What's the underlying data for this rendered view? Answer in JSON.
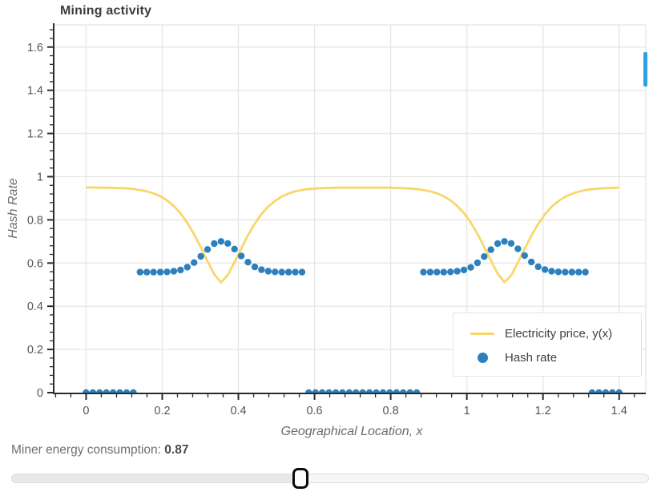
{
  "chart_data": {
    "type": "line+scatter",
    "title": "Mining activity",
    "xlabel": "Geographical Location, x",
    "ylabel": "Hash Rate",
    "xlim": [
      -0.083,
      1.47
    ],
    "ylim": [
      0,
      1.703
    ],
    "x_ticks": {
      "values": [
        0,
        0.2,
        0.4,
        0.6,
        0.8,
        1,
        1.2,
        1.4
      ],
      "labels": [
        "0",
        "0.2",
        "0.4",
        "0.6",
        "0.8",
        "1",
        "1.2",
        "1.4"
      ]
    },
    "y_ticks": {
      "values": [
        0,
        0.2,
        0.4,
        0.6,
        0.8,
        1,
        1.2,
        1.4,
        1.6
      ],
      "labels": [
        "0",
        "0.2",
        "0.4",
        "0.6",
        "0.8",
        "1",
        "1.2",
        "1.4",
        "1.6"
      ]
    },
    "minor_tick_step": 0.04,
    "grid": true,
    "legend_position": "bottom-right",
    "colors": {
      "grid": "#e7e7e7",
      "axis": "#2b2b2b",
      "tick_text": "#555555"
    },
    "x": [
      0,
      0.0177,
      0.0354,
      0.0532,
      0.0709,
      0.0886,
      0.1063,
      0.1241,
      0.1418,
      0.1595,
      0.1772,
      0.1949,
      0.2127,
      0.2304,
      0.2481,
      0.2658,
      0.2835,
      0.3013,
      0.319,
      0.3367,
      0.3544,
      0.3722,
      0.3899,
      0.4076,
      0.4253,
      0.443,
      0.4608,
      0.4785,
      0.4962,
      0.5139,
      0.5316,
      0.5494,
      0.5671,
      0.5848,
      0.6025,
      0.6203,
      0.638,
      0.6557,
      0.6734,
      0.6911,
      0.7089,
      0.7266,
      0.7443,
      0.762,
      0.7797,
      0.7975,
      0.8152,
      0.8329,
      0.8506,
      0.8684,
      0.8861,
      0.9038,
      0.9215,
      0.9392,
      0.957,
      0.9747,
      0.9924,
      1.0101,
      1.0278,
      1.0456,
      1.0633,
      1.081,
      1.0987,
      1.1165,
      1.1342,
      1.1519,
      1.1696,
      1.1873,
      1.2051,
      1.2228,
      1.2405,
      1.2582,
      1.2759,
      1.2937,
      1.3114,
      1.3291,
      1.3468,
      1.3646,
      1.3823,
      1.4
    ],
    "series": [
      {
        "name": "Electricity price, y(x)",
        "type": "line",
        "color": "#FAD66A",
        "line_width": 2.8,
        "values": [
          0.95,
          0.95,
          0.949,
          0.949,
          0.948,
          0.947,
          0.946,
          0.943,
          0.938,
          0.932,
          0.923,
          0.909,
          0.89,
          0.864,
          0.83,
          0.786,
          0.733,
          0.673,
          0.608,
          0.548,
          0.51,
          0.545,
          0.604,
          0.668,
          0.729,
          0.783,
          0.827,
          0.862,
          0.888,
          0.908,
          0.922,
          0.932,
          0.938,
          0.943,
          0.945,
          0.947,
          0.948,
          0.949,
          0.949,
          0.949,
          0.949,
          0.949,
          0.949,
          0.949,
          0.949,
          0.949,
          0.948,
          0.947,
          0.945,
          0.943,
          0.938,
          0.932,
          0.923,
          0.909,
          0.891,
          0.865,
          0.831,
          0.788,
          0.735,
          0.675,
          0.611,
          0.551,
          0.511,
          0.543,
          0.602,
          0.666,
          0.727,
          0.781,
          0.825,
          0.861,
          0.887,
          0.907,
          0.921,
          0.931,
          0.938,
          0.942,
          0.945,
          0.947,
          0.948,
          0.949
        ]
      },
      {
        "name": "Hash rate",
        "type": "scatter",
        "color": "#2B80BD",
        "marker_radius": 4.2,
        "values": [
          0,
          0,
          0,
          0,
          0,
          0,
          0,
          0,
          0.558,
          0.558,
          0.558,
          0.558,
          0.559,
          0.562,
          0.568,
          0.581,
          0.602,
          0.631,
          0.663,
          0.69,
          0.7,
          0.691,
          0.665,
          0.633,
          0.604,
          0.582,
          0.569,
          0.562,
          0.559,
          0.558,
          0.558,
          0.558,
          0.558,
          0,
          0,
          0,
          0,
          0,
          0,
          0,
          0,
          0,
          0,
          0,
          0,
          0,
          0,
          0,
          0,
          0,
          0.558,
          0.558,
          0.558,
          0.558,
          0.559,
          0.562,
          0.568,
          0.58,
          0.601,
          0.63,
          0.662,
          0.69,
          0.7,
          0.691,
          0.666,
          0.635,
          0.605,
          0.583,
          0.57,
          0.562,
          0.559,
          0.558,
          0.558,
          0.558,
          0.558,
          0,
          0,
          0,
          0,
          0
        ]
      }
    ]
  },
  "controls": {
    "consumption_label": "Miner energy consumption:",
    "consumption_value": "0.87",
    "slider_percent": 45.4
  },
  "scrollbar_color": "#2D9FE8"
}
